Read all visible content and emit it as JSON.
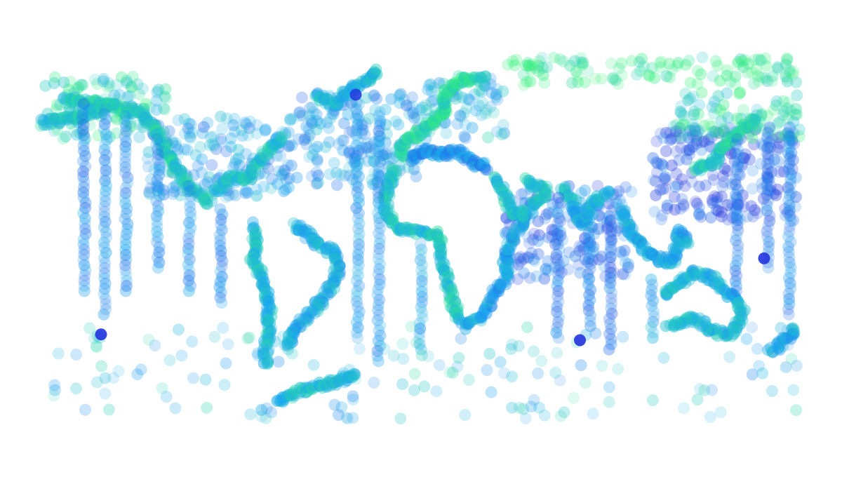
{
  "chart_data": {
    "type": "scatter",
    "title": "",
    "xlabel": "",
    "ylabel": "",
    "projection": "equirectangular",
    "xlim": [
      -180,
      180
    ],
    "ylim": [
      -80,
      82
    ],
    "grid": false,
    "axes_visible": false,
    "legend": "none",
    "marker": {
      "shape": "circle",
      "opacity": 0.3
    },
    "colormap": [
      "#2233dd",
      "#1f6fe8",
      "#1aa6f0",
      "#22c8c0",
      "#33f07a"
    ],
    "dense_regions": [
      {
        "lon": [
          -180,
          -120
        ],
        "lat": [
          45,
          72
        ],
        "color_value": 0.8
      },
      {
        "lon": [
          -130,
          -60
        ],
        "lat": [
          20,
          55
        ],
        "color_value": 0.45
      },
      {
        "lon": [
          -60,
          0
        ],
        "lat": [
          25,
          65
        ],
        "color_value": 0.45
      },
      {
        "lon": [
          0,
          40
        ],
        "lat": [
          45,
          72
        ],
        "color_value": 0.6
      },
      {
        "lon": [
          40,
          180
        ],
        "lat": [
          68,
          80
        ],
        "color_value": 0.95
      },
      {
        "lon": [
          110,
          180
        ],
        "lat": [
          10,
          50
        ],
        "color_value": 0.12
      },
      {
        "lon": [
          120,
          180
        ],
        "lat": [
          45,
          65
        ],
        "color_value": 0.85
      },
      {
        "lon": [
          40,
          100
        ],
        "lat": [
          -15,
          25
        ],
        "color_value": 0.25
      }
    ],
    "coastal_tracks": [
      {
        "name": "north-america-west-coast",
        "lon": [
          -170,
          -150,
          -135,
          -125,
          -118,
          -110,
          -100
        ],
        "lat": [
          62,
          60,
          57,
          48,
          34,
          24,
          18
        ],
        "color_value": 0.75
      },
      {
        "name": "north-america-east-coast",
        "lon": [
          -98,
          -90,
          -82,
          -80,
          -75,
          -70,
          -65
        ],
        "lat": [
          22,
          29,
          28,
          32,
          38,
          42,
          46
        ],
        "color_value": 0.7
      },
      {
        "name": "south-america-west-coast",
        "lon": [
          -80,
          -78,
          -80,
          -75,
          -72,
          -73,
          -74
        ],
        "lat": [
          8,
          0,
          -5,
          -15,
          -25,
          -40,
          -52
        ],
        "color_value": 0.65
      },
      {
        "name": "south-america-east-coast",
        "lon": [
          -60,
          -48,
          -40,
          -40,
          -48,
          -58,
          -65
        ],
        "lat": [
          8,
          0,
          -5,
          -15,
          -25,
          -35,
          -45
        ],
        "color_value": 0.55
      },
      {
        "name": "africa-west-coast",
        "lon": [
          -12,
          -17,
          -16,
          -10,
          0,
          9,
          10,
          13,
          18
        ],
        "lat": [
          32,
          20,
          12,
          6,
          5,
          4,
          -5,
          -18,
          -33
        ],
        "color_value": 0.72
      },
      {
        "name": "africa-east-coast",
        "lon": [
          20,
          30,
          35,
          40,
          40,
          45,
          50,
          43
        ],
        "lat": [
          -35,
          -30,
          -20,
          -15,
          -5,
          5,
          12,
          14
        ],
        "color_value": 0.5
      },
      {
        "name": "europe-atlantic-coast",
        "lon": [
          -9,
          -9,
          -2,
          5,
          8,
          12,
          10,
          20,
          30
        ],
        "lat": [
          37,
          43,
          47,
          52,
          55,
          57,
          63,
          70,
          71
        ],
        "color_value": 0.85
      },
      {
        "name": "mediterranean",
        "lon": [
          -5,
          3,
          10,
          15,
          20,
          25,
          32
        ],
        "lat": [
          36,
          40,
          38,
          40,
          38,
          35,
          33
        ],
        "color_value": 0.4
      },
      {
        "name": "greenland",
        "lon": [
          -50,
          -45,
          -42,
          -35,
          -25,
          -20
        ],
        "lat": [
          65,
          62,
          60,
          65,
          70,
          75
        ],
        "color_value": 0.6
      },
      {
        "name": "arabia-coast",
        "lon": [
          35,
          40,
          43,
          50,
          57,
          60,
          52,
          50
        ],
        "lat": [
          28,
          21,
          13,
          13,
          20,
          24,
          25,
          28
        ],
        "color_value": 0.7
      },
      {
        "name": "india-coast",
        "lon": [
          67,
          72,
          73,
          77,
          80,
          80,
          85,
          90
        ],
        "lat": [
          24,
          20,
          15,
          8,
          12,
          16,
          20,
          22
        ],
        "color_value": 0.6
      },
      {
        "name": "southeast-asia",
        "lon": [
          95,
          100,
          105,
          110,
          120,
          122,
          128
        ],
        "lat": [
          15,
          5,
          0,
          -5,
          -8,
          5,
          0
        ],
        "color_value": 0.55
      },
      {
        "name": "australia",
        "lon": [
          115,
          120,
          130,
          140,
          150,
          153,
          148,
          140,
          130,
          117
        ],
        "lat": [
          -22,
          -18,
          -12,
          -15,
          -25,
          -30,
          -38,
          -38,
          -32,
          -34
        ],
        "color_value": 0.62
      },
      {
        "name": "new-zealand",
        "lon": [
          166,
          170,
          173,
          176,
          178
        ],
        "lat": [
          -46,
          -44,
          -41,
          -38,
          -36
        ],
        "color_value": 0.55
      },
      {
        "name": "antarctic-peninsula",
        "lon": [
          -68,
          -62,
          -55,
          -45,
          -30
        ],
        "lat": [
          -68,
          -65,
          -62,
          -60,
          -56
        ],
        "color_value": 0.65
      },
      {
        "name": "japan-kamchatka",
        "lon": [
          130,
          135,
          140,
          142,
          145,
          155,
          160
        ],
        "lat": [
          32,
          34,
          36,
          40,
          44,
          50,
          55
        ],
        "color_value": 0.78
      },
      {
        "name": "aleutians-alaska",
        "lon": [
          -180,
          -170,
          -160,
          -150,
          -145
        ],
        "lat": [
          52,
          53,
          55,
          59,
          60
        ],
        "color_value": 0.7
      }
    ],
    "vertical_transects": [
      {
        "lon": -160,
        "lat": [
          60,
          -20
        ],
        "color_value": 0.35
      },
      {
        "lon": -150,
        "lat": [
          58,
          -30
        ],
        "color_value": 0.4
      },
      {
        "lon": -140,
        "lat": [
          55,
          -20
        ],
        "color_value": 0.38
      },
      {
        "lon": -125,
        "lat": [
          45,
          -10
        ],
        "color_value": 0.42
      },
      {
        "lon": -110,
        "lat": [
          25,
          -20
        ],
        "color_value": 0.4
      },
      {
        "lon": -95,
        "lat": [
          15,
          -25
        ],
        "color_value": 0.35
      },
      {
        "lon": -30,
        "lat": [
          60,
          -40
        ],
        "color_value": 0.45
      },
      {
        "lon": -20,
        "lat": [
          55,
          -50
        ],
        "color_value": 0.42
      },
      {
        "lon": 0,
        "lat": [
          0,
          -45
        ],
        "color_value": 0.5
      },
      {
        "lon": 65,
        "lat": [
          20,
          -40
        ],
        "color_value": 0.3
      },
      {
        "lon": 80,
        "lat": [
          5,
          -35
        ],
        "color_value": 0.35
      },
      {
        "lon": 90,
        "lat": [
          12,
          -45
        ],
        "color_value": 0.25
      },
      {
        "lon": 110,
        "lat": [
          -15,
          -40
        ],
        "color_value": 0.5
      },
      {
        "lon": 150,
        "lat": [
          45,
          -20
        ],
        "color_value": 0.3
      },
      {
        "lon": 165,
        "lat": [
          50,
          -10
        ],
        "color_value": 0.25
      },
      {
        "lon": 175,
        "lat": [
          50,
          -30
        ],
        "color_value": 0.35
      }
    ],
    "sparse_southern": [
      {
        "lon": [
          -175,
          180
        ],
        "lat": [
          -35,
          -75
        ],
        "color_value": 0.6
      }
    ],
    "highlight_points": [
      {
        "lon": -152,
        "lat": -38.5,
        "color_value": 0.0
      },
      {
        "lon": 75.5,
        "lat": -41,
        "color_value": 0.0
      },
      {
        "lon": -31,
        "lat": 64,
        "color_value": 0.05
      },
      {
        "lon": 163,
        "lat": -6,
        "color_value": 0.0
      }
    ]
  }
}
